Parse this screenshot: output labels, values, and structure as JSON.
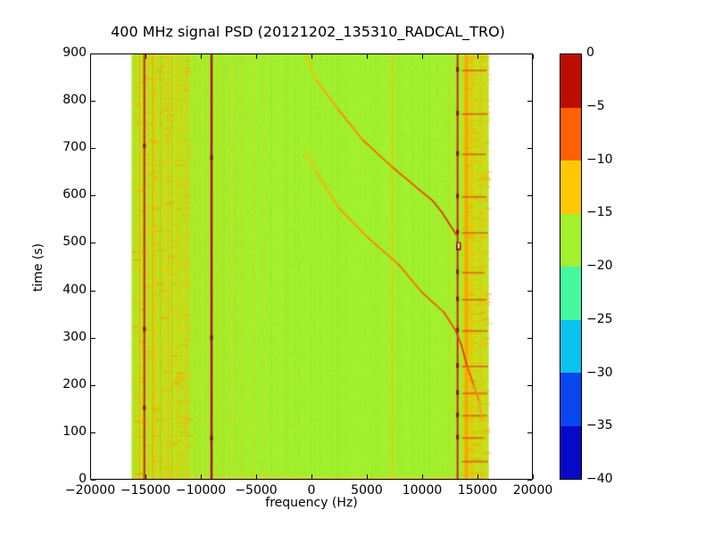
{
  "title": "400 MHz signal PSD (20121202_135310_RADCAL_TRO)",
  "xlabel": "frequency (Hz)",
  "ylabel": "time (s)",
  "axes": {
    "xlim": [
      -20000,
      20000
    ],
    "ylim": [
      0,
      900
    ],
    "x_tick_values": [
      -20000,
      -15000,
      -10000,
      -5000,
      0,
      5000,
      10000,
      15000,
      20000
    ],
    "x_tick_labels": [
      "−20000",
      "−15000",
      "−10000",
      "−5000",
      "0",
      "5000",
      "10000",
      "15000",
      "20000"
    ],
    "y_tick_values": [
      0,
      100,
      200,
      300,
      400,
      500,
      600,
      700,
      800,
      900
    ],
    "y_tick_labels": [
      "0",
      "100",
      "200",
      "300",
      "400",
      "500",
      "600",
      "700",
      "800",
      "900"
    ]
  },
  "colorbar": {
    "tick_values": [
      0,
      -5,
      -10,
      -15,
      -20,
      -25,
      -30,
      -35,
      -40
    ],
    "tick_labels": [
      "0",
      "−5",
      "−10",
      "−15",
      "−20",
      "−25",
      "−30",
      "−35",
      "−40"
    ],
    "colors_top_to_bottom": [
      "#bd0d00",
      "#ff6000",
      "#ffc800",
      "#a2f02e",
      "#46f7a0",
      "#0ac2f0",
      "#0a46f0",
      "#0808c8"
    ]
  },
  "chart_data": {
    "type": "heatmap",
    "title": "400 MHz signal PSD (20121202_135310_RADCAL_TRO)",
    "xlabel": "frequency (Hz)",
    "ylabel": "time (s)",
    "xlim": [
      -20000,
      20000
    ],
    "ylim": [
      0,
      900
    ],
    "colorbar_range_db": [
      0,
      -40
    ],
    "colormap_levels": {
      "boundaries_db": [
        0,
        -5,
        -10,
        -15,
        -20,
        -25,
        -30,
        -35,
        -40
      ],
      "colors": [
        "#bd0d00",
        "#ff6000",
        "#ffc800",
        "#a2f02e",
        "#46f7a0",
        "#0ac2f0",
        "#0a46f0",
        "#0808c8"
      ]
    },
    "data_extent_hz": [
      -16250,
      16000
    ],
    "background_color": "#a2f02e",
    "background_level_db": -18,
    "noise_bands": [
      {
        "f0": -16250,
        "f1": -11000,
        "color": "#ffc800",
        "density": 0.5
      },
      {
        "f0": 13550,
        "f1": 16000,
        "color": "#ffc800",
        "density": 0.6
      }
    ],
    "vertical_lines": [
      {
        "f": -15890,
        "color": "#ffb400",
        "w": 1,
        "a": 0.5
      },
      {
        "f": -15570,
        "color": "#ff9000",
        "w": 1,
        "a": 0.55
      },
      {
        "f": -15100,
        "color": "#d42000",
        "w": 2,
        "a": 1.0
      },
      {
        "f": -14770,
        "color": "#ffb400",
        "w": 1,
        "a": 0.5
      },
      {
        "f": -14360,
        "color": "#ffa000",
        "w": 2,
        "a": 0.6
      },
      {
        "f": -14040,
        "color": "#ffb400",
        "w": 1,
        "a": 0.5
      },
      {
        "f": -13640,
        "color": "#ff9000",
        "w": 1,
        "a": 0.6
      },
      {
        "f": -13320,
        "color": "#ffb400",
        "w": 1,
        "a": 0.45
      },
      {
        "f": -12920,
        "color": "#ffb400",
        "w": 2,
        "a": 0.55
      },
      {
        "f": -12600,
        "color": "#ff9000",
        "w": 1,
        "a": 0.5
      },
      {
        "f": -12110,
        "color": "#ffb400",
        "w": 1,
        "a": 0.6
      },
      {
        "f": -11710,
        "color": "#ffb400",
        "w": 1,
        "a": 0.45
      },
      {
        "f": -11310,
        "color": "#ffa000",
        "w": 1,
        "a": 0.5
      },
      {
        "f": -10580,
        "color": "#ffc000",
        "w": 1,
        "a": 0.6
      },
      {
        "f": -10180,
        "color": "#ffc000",
        "w": 1,
        "a": 0.45
      },
      {
        "f": -9620,
        "color": "#ffc000",
        "w": 1,
        "a": 0.55
      },
      {
        "f": -9030,
        "color": "#b51000",
        "w": 2.5,
        "a": 1.0
      },
      {
        "f": -8570,
        "color": "#ffc000",
        "w": 1,
        "a": 0.6
      },
      {
        "f": -8000,
        "color": "#ffc000",
        "w": 1,
        "a": 0.5
      },
      {
        "f": -7440,
        "color": "#ffc000",
        "w": 1,
        "a": 0.45
      },
      {
        "f": -6960,
        "color": "#ffc000",
        "w": 1,
        "a": 0.55
      },
      {
        "f": -6400,
        "color": "#ffc000",
        "w": 1,
        "a": 0.35
      },
      {
        "f": -5910,
        "color": "#ffc000",
        "w": 1,
        "a": 0.4
      },
      {
        "f": -5190,
        "color": "#ffc000",
        "w": 1,
        "a": 0.5
      },
      {
        "f": -4300,
        "color": "#ffc000",
        "w": 1,
        "a": 0.25
      },
      {
        "f": -2100,
        "color": "#ffc000",
        "w": 1,
        "a": 0.2
      },
      {
        "f": 7300,
        "color": "#ffc000",
        "w": 1.5,
        "a": 0.9
      },
      {
        "f": 12420,
        "color": "#ffc000",
        "w": 1,
        "a": 0.5
      },
      {
        "f": 13200,
        "color": "#d42000",
        "w": 2,
        "a": 1.0
      },
      {
        "f": 14000,
        "color": "#ffa000",
        "w": 4,
        "a": 0.85
      },
      {
        "f": 14500,
        "color": "#ffb400",
        "w": 2,
        "a": 0.6
      },
      {
        "f": 15300,
        "color": "#ffb400",
        "w": 1.5,
        "a": 0.5
      }
    ],
    "horizontal_lines": [
      {
        "t": 217,
        "f0": -16250,
        "f1": -3000,
        "color": "#ffc800",
        "a": 0.2
      },
      {
        "t": 125,
        "f0": -16250,
        "f1": -3200,
        "color": "#ffc800",
        "a": 0.22
      },
      {
        "t": 15,
        "f0": -16250,
        "f1": -2000,
        "color": "#ffc800",
        "a": 0.2
      },
      {
        "t": 452,
        "f0": -16250,
        "f1": -9500,
        "color": "#ffc800",
        "a": 0.18
      }
    ],
    "bottom_band": {
      "t0": 0,
      "t1": 8,
      "color": "#f0c830",
      "a": 0.45
    },
    "chirps": [
      {
        "name": "doppler-pass-1",
        "points_f_t": [
          [
            -500,
            895
          ],
          [
            450,
            843
          ],
          [
            2450,
            781
          ],
          [
            4650,
            717
          ],
          [
            7300,
            660
          ],
          [
            9700,
            613
          ],
          [
            10950,
            589
          ],
          [
            11750,
            566
          ],
          [
            12400,
            542
          ],
          [
            13100,
            517
          ]
        ],
        "color_stops": [
          [
            0,
            "#ffc800"
          ],
          [
            0.2,
            "#ff9800"
          ],
          [
            0.45,
            "#f05800"
          ],
          [
            0.8,
            "#e03010"
          ],
          [
            1,
            "#d82808"
          ]
        ]
      },
      {
        "name": "doppler-pass-2",
        "points_f_t": [
          [
            -500,
            692
          ],
          [
            450,
            650
          ],
          [
            2450,
            574
          ],
          [
            5150,
            510
          ],
          [
            7900,
            454
          ],
          [
            10000,
            395
          ],
          [
            11950,
            354
          ],
          [
            13000,
            316
          ],
          [
            13550,
            284
          ],
          [
            14050,
            241
          ],
          [
            14600,
            203
          ],
          [
            15150,
            166
          ],
          [
            15400,
            128
          ]
        ],
        "color_stops": [
          [
            0,
            "#ffc800"
          ],
          [
            0.2,
            "#ff9800"
          ],
          [
            0.5,
            "#ee5008"
          ],
          [
            0.75,
            "#e03010"
          ],
          [
            0.88,
            "#f07018"
          ],
          [
            1,
            "#ffa020"
          ]
        ]
      }
    ],
    "line_knots": [
      {
        "f": 13200,
        "times": [
          866,
          774,
          689,
          599,
          523,
          490,
          439,
          382,
          316,
          241,
          184,
          137,
          90
        ]
      },
      {
        "f": -15100,
        "times": [
          705,
          318,
          152
        ]
      },
      {
        "f": -9030,
        "times": [
          680,
          300,
          88
        ]
      }
    ],
    "right_band_dashes": {
      "f0": 13600,
      "f1": 15600,
      "color": "#dc3200",
      "times": [
        866,
        774,
        689,
        599,
        523,
        439,
        382,
        316,
        241,
        184,
        137,
        90,
        40
      ]
    },
    "white_spot": {
      "f": 13300,
      "t": 494
    }
  }
}
